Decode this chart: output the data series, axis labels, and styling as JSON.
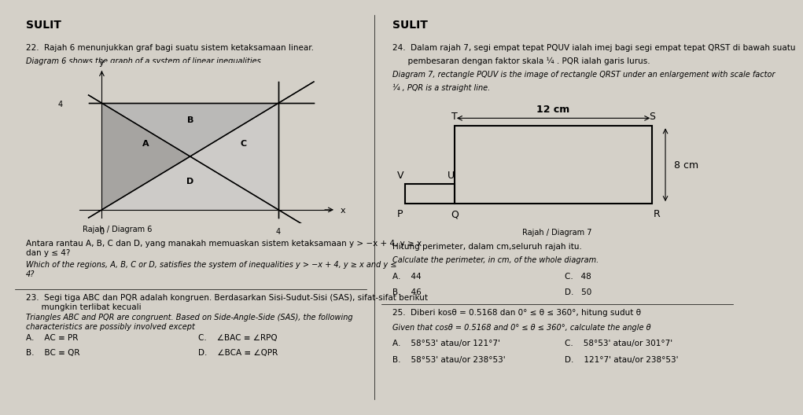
{
  "bg_color": "#d4d0c8",
  "text_color": "#000000",
  "title_left": "SULIT",
  "title_right": "SULIT",
  "q22_title_ms": "22.  Rajah 6 menunjukkan graf bagi suatu sistem ketaksamaan linear.",
  "q22_title_en": "Diagram 6 shows the graph of a system of linear inequalities.",
  "q22_caption": "Rajah / Diagram 6",
  "q22_body_ms": "Antara rantau A, B, C dan D, yang manakah memuaskan sistem ketaksamaan y > −x + 4, y ≥ x\ndan y ≤ 4?",
  "q22_body_en": "Which of the regions, A, B, C or D, satisfies the system of inequalities y > −x + 4, y ≥ x and y ≤\n4?",
  "q23_title_ms": "23.  Segi tiga ABC dan PQR adalah kongruen. Berdasarkan Sisi-Sudut-Sisi (SAS), sifat-sifat berikut\n      mungkin terlibat kecuali",
  "q23_title_en": "Triangles ABC and PQR are congruent. Based on Side-Angle-Side (SAS), the following\ncharacteristics are possibly involved except",
  "q23_A": "A.    AC ≡ PR",
  "q23_B": "B.    BC ≡ QR",
  "q23_C": "C.    ∠BAC ≡ ∠RPQ",
  "q23_D": "D.    ∠BCA ≡ ∠QPR",
  "q24_title_ms": "24.  Dalam rajah 7, segi empat tepat PQUV ialah imej bagi segi empat tepat QRST di bawah suatu",
  "q24_title_ms2": "      pembesaran dengan faktor skala ¼ . PQR ialah garis lurus.",
  "q24_title_en": "Diagram 7, rectangle PQUV is the image of rectangle QRST under an enlargement with scale factor",
  "q24_title_en2": "¼ , PQR is a straight line.",
  "q24_caption": "Rajah / Diagram 7",
  "q24_body_ms": "Hitung perimeter, dalam cm,seluruh rajah itu.",
  "q24_body_en": "Calculate the perimeter, in cm, of the whole diagram.",
  "q24_A": "A.    44",
  "q24_B": "B.    46",
  "q24_C": "C.   48",
  "q24_D": "D.   50",
  "q25_title_ms": "25.  Diberi kosθ = 0.5168 dan 0° ≤ θ ≤ 360°, hitung sudut θ",
  "q25_title_en": "Given that cosθ = 0.5168 and 0° ≤ θ ≤ 360°, calculate the angle θ",
  "q25_A": "A.    58°53' atau/or 121°7'",
  "q25_B": "B.    58°53' atau/or 238°53'",
  "q25_C": "C.    58°53' atau/or 301°7'",
  "q25_D": "D.    121°7' atau/or 238°53'"
}
